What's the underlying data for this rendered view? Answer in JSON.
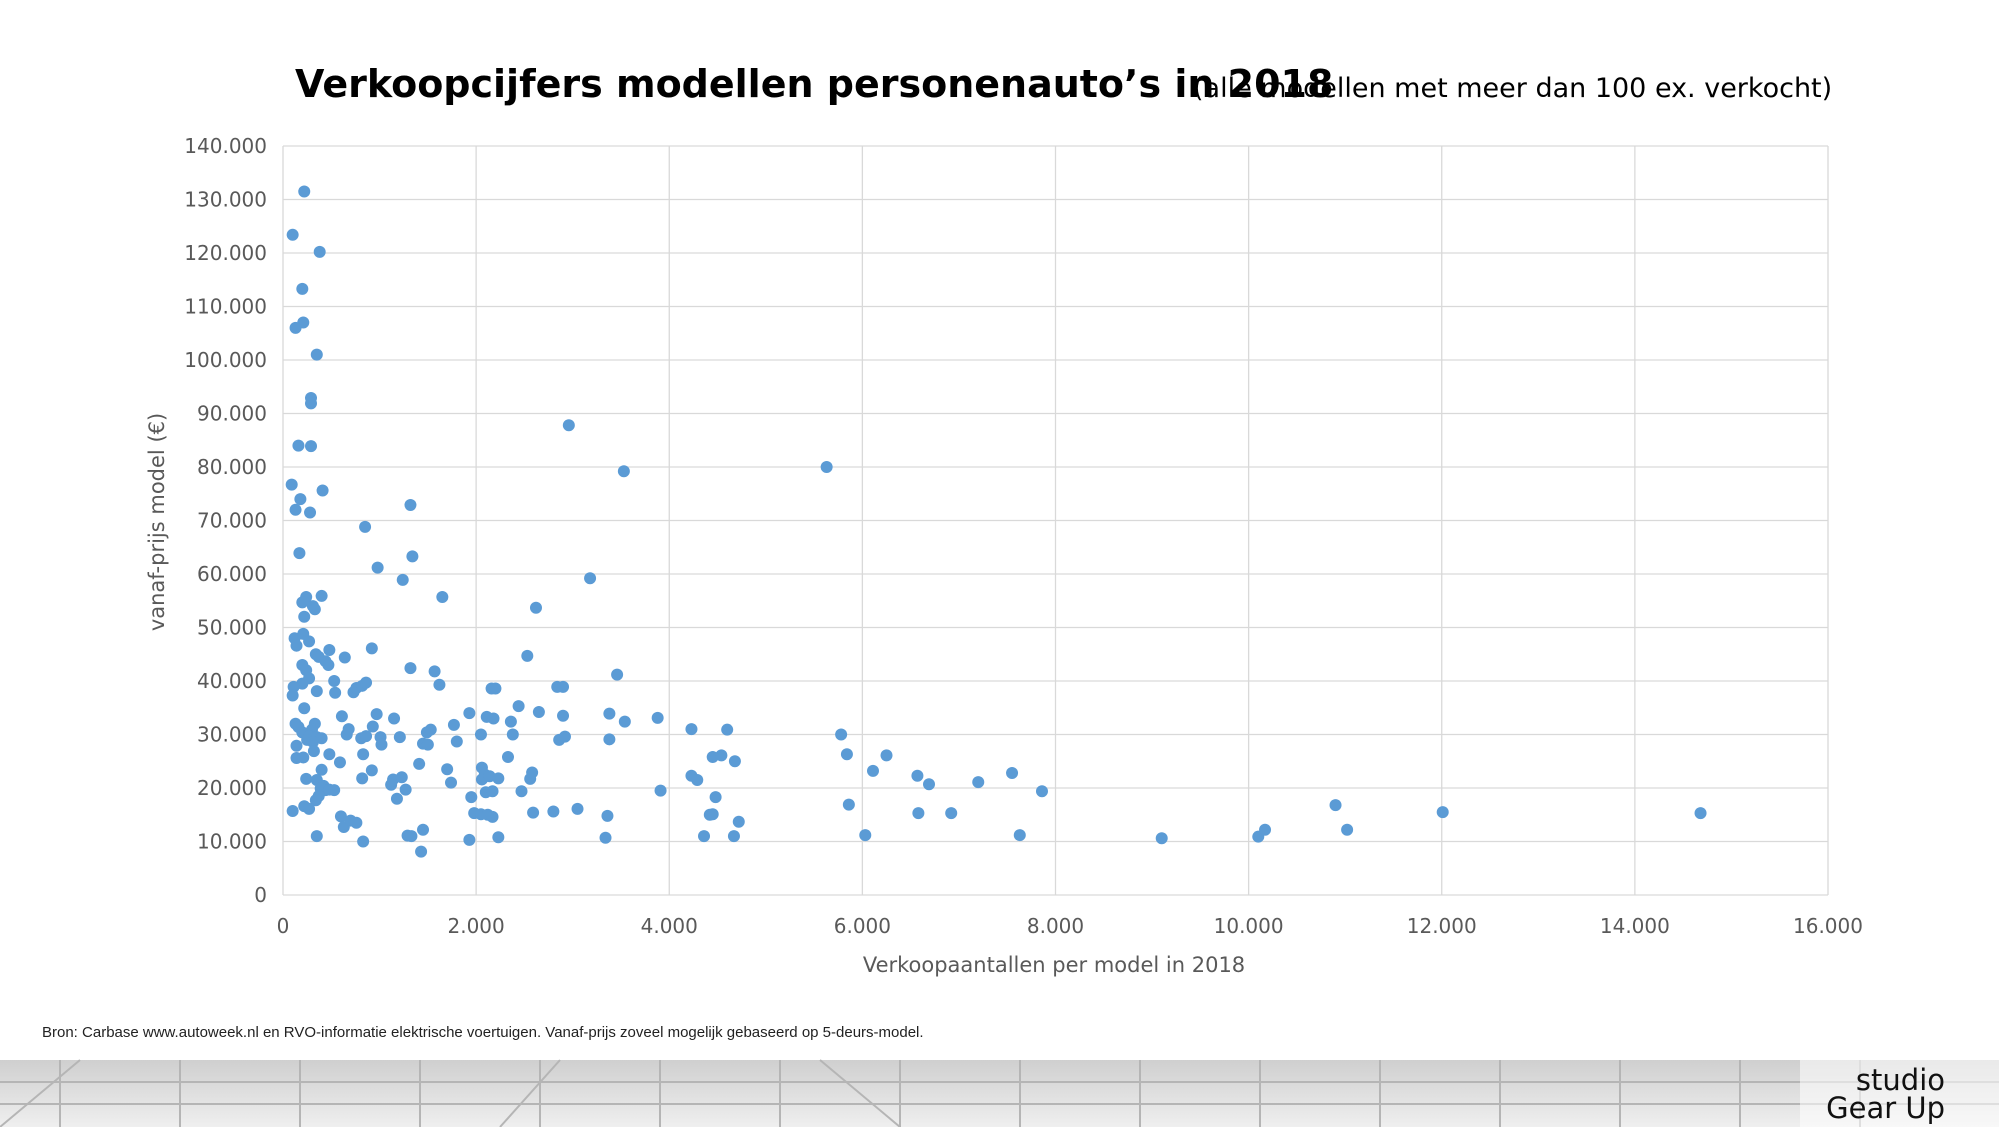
{
  "title": "Verkoopcijfers modellen personenauto’s in 2018",
  "subtitle": "(alle modellen met meer dan 100 ex. verkocht)",
  "source": "Bron:  Carbase www.autoweek.nl en RVO-informatie elektrische voertuigen. Vanaf-prijs zoveel mogelijk gebaseerd op 5-deurs-model.",
  "logo": {
    "line1": "studio",
    "line2": "Gear Up"
  },
  "colors": {
    "point": "#5b9bd5",
    "grid": "#d9d9d9",
    "text": "#595959"
  },
  "chart_data": {
    "type": "scatter",
    "title": "Verkoopcijfers modellen personenauto’s in 2018",
    "subtitle": "(alle modellen met meer dan 100 ex. verkocht)",
    "xlabel": "Verkoopaantallen per model in 2018",
    "ylabel": "vanaf-prijs model (€)",
    "xlim": [
      0,
      16000
    ],
    "ylim": [
      0,
      140000
    ],
    "grid": true,
    "legend": "none",
    "x_ticks": [
      "0",
      "2.000",
      "4.000",
      "6.000",
      "8.000",
      "10.000",
      "12.000",
      "14.000",
      "16.000"
    ],
    "y_ticks": [
      "0",
      "10.000",
      "20.000",
      "30.000",
      "40.000",
      "50.000",
      "60.000",
      "70.000",
      "80.000",
      "90.000",
      "100.000",
      "110.000",
      "120.000",
      "130.000",
      "140.000"
    ],
    "points": [
      [
        220,
        131500
      ],
      [
        100,
        123400
      ],
      [
        380,
        120200
      ],
      [
        200,
        113300
      ],
      [
        210,
        107000
      ],
      [
        130,
        106000
      ],
      [
        350,
        101000
      ],
      [
        290,
        92900
      ],
      [
        290,
        91900
      ],
      [
        160,
        84000
      ],
      [
        290,
        83900
      ],
      [
        90,
        76700
      ],
      [
        410,
        75600
      ],
      [
        180,
        74000
      ],
      [
        130,
        72000
      ],
      [
        280,
        71500
      ],
      [
        170,
        63900
      ],
      [
        240,
        55700
      ],
      [
        400,
        55900
      ],
      [
        200,
        54700
      ],
      [
        310,
        54000
      ],
      [
        330,
        53400
      ],
      [
        220,
        52000
      ],
      [
        120,
        48000
      ],
      [
        210,
        48800
      ],
      [
        270,
        47400
      ],
      [
        140,
        46600
      ],
      [
        340,
        45000
      ],
      [
        480,
        45800
      ],
      [
        370,
        44500
      ],
      [
        440,
        43700
      ],
      [
        470,
        43000
      ],
      [
        200,
        43000
      ],
      [
        240,
        42000
      ],
      [
        270,
        40500
      ],
      [
        200,
        39500
      ],
      [
        110,
        38900
      ],
      [
        530,
        40000
      ],
      [
        350,
        38100
      ],
      [
        100,
        37300
      ],
      [
        540,
        37800
      ],
      [
        220,
        34900
      ],
      [
        130,
        32000
      ],
      [
        160,
        31400
      ],
      [
        330,
        32000
      ],
      [
        300,
        30900
      ],
      [
        200,
        30400
      ],
      [
        270,
        29700
      ],
      [
        350,
        29500
      ],
      [
        400,
        29300
      ],
      [
        250,
        29000
      ],
      [
        310,
        28600
      ],
      [
        140,
        27900
      ],
      [
        320,
        26900
      ],
      [
        480,
        26300
      ],
      [
        140,
        25600
      ],
      [
        210,
        25700
      ],
      [
        400,
        23400
      ],
      [
        240,
        21700
      ],
      [
        350,
        21500
      ],
      [
        420,
        20400
      ],
      [
        390,
        19900
      ],
      [
        440,
        19600
      ],
      [
        480,
        19700
      ],
      [
        530,
        19600
      ],
      [
        370,
        18500
      ],
      [
        340,
        17700
      ],
      [
        220,
        16600
      ],
      [
        270,
        16100
      ],
      [
        100,
        15700
      ],
      [
        350,
        11000
      ],
      [
        590,
        24800
      ],
      [
        610,
        33400
      ],
      [
        660,
        30000
      ],
      [
        680,
        31000
      ],
      [
        640,
        44400
      ],
      [
        730,
        37900
      ],
      [
        760,
        38700
      ],
      [
        820,
        39100
      ],
      [
        860,
        39700
      ],
      [
        920,
        46100
      ],
      [
        970,
        33800
      ],
      [
        930,
        31500
      ],
      [
        1010,
        29500
      ],
      [
        810,
        29300
      ],
      [
        860,
        29700
      ],
      [
        830,
        26300
      ],
      [
        1020,
        28100
      ],
      [
        920,
        23300
      ],
      [
        820,
        21800
      ],
      [
        600,
        14700
      ],
      [
        630,
        12700
      ],
      [
        700,
        13900
      ],
      [
        760,
        13500
      ],
      [
        830,
        10000
      ],
      [
        850,
        68800
      ],
      [
        980,
        61200
      ],
      [
        1240,
        58900
      ],
      [
        1320,
        72900
      ],
      [
        1340,
        63300
      ],
      [
        1650,
        55700
      ],
      [
        1570,
        41800
      ],
      [
        1620,
        39300
      ],
      [
        1320,
        42400
      ],
      [
        1150,
        33000
      ],
      [
        1210,
        29500
      ],
      [
        1450,
        28300
      ],
      [
        1490,
        30400
      ],
      [
        1530,
        30900
      ],
      [
        1500,
        28100
      ],
      [
        1410,
        24500
      ],
      [
        1140,
        21600
      ],
      [
        1120,
        20600
      ],
      [
        1230,
        22000
      ],
      [
        1270,
        19700
      ],
      [
        1180,
        18000
      ],
      [
        1700,
        23500
      ],
      [
        1740,
        21000
      ],
      [
        1770,
        31800
      ],
      [
        1800,
        28700
      ],
      [
        1290,
        11100
      ],
      [
        1330,
        11000
      ],
      [
        1450,
        12200
      ],
      [
        1430,
        8100
      ],
      [
        1930,
        34000
      ],
      [
        1950,
        18300
      ],
      [
        1980,
        15300
      ],
      [
        1930,
        10300
      ],
      [
        2050,
        30000
      ],
      [
        2110,
        33300
      ],
      [
        2180,
        33000
      ],
      [
        2160,
        38600
      ],
      [
        2200,
        38600
      ],
      [
        2060,
        23800
      ],
      [
        2090,
        22500
      ],
      [
        2060,
        21600
      ],
      [
        2140,
        22200
      ],
      [
        2230,
        21800
      ],
      [
        2100,
        19200
      ],
      [
        2170,
        19400
      ],
      [
        2050,
        15100
      ],
      [
        2120,
        15000
      ],
      [
        2170,
        14600
      ],
      [
        2230,
        10800
      ],
      [
        2330,
        25800
      ],
      [
        2360,
        32400
      ],
      [
        2380,
        30000
      ],
      [
        2440,
        35300
      ],
      [
        2530,
        44700
      ],
      [
        2620,
        53700
      ],
      [
        2650,
        34200
      ],
      [
        2470,
        19400
      ],
      [
        2560,
        21700
      ],
      [
        2580,
        22900
      ],
      [
        2590,
        15400
      ],
      [
        2800,
        15600
      ],
      [
        2840,
        38900
      ],
      [
        2900,
        38900
      ],
      [
        2960,
        87800
      ],
      [
        2860,
        29000
      ],
      [
        2920,
        29600
      ],
      [
        2900,
        33500
      ],
      [
        3050,
        16100
      ],
      [
        3180,
        59200
      ],
      [
        3380,
        33900
      ],
      [
        3380,
        29100
      ],
      [
        3460,
        41200
      ],
      [
        3540,
        32400
      ],
      [
        3360,
        14800
      ],
      [
        3340,
        10700
      ],
      [
        3530,
        79200
      ],
      [
        3880,
        33100
      ],
      [
        3910,
        19500
      ],
      [
        4230,
        31000
      ],
      [
        4230,
        22300
      ],
      [
        4290,
        21500
      ],
      [
        4450,
        25800
      ],
      [
        4480,
        18300
      ],
      [
        4420,
        15000
      ],
      [
        4450,
        15100
      ],
      [
        4360,
        11000
      ],
      [
        4540,
        26100
      ],
      [
        4600,
        30900
      ],
      [
        4680,
        25000
      ],
      [
        4720,
        13700
      ],
      [
        4670,
        11000
      ],
      [
        5630,
        80000
      ],
      [
        5780,
        30000
      ],
      [
        5840,
        26300
      ],
      [
        5860,
        16900
      ],
      [
        6030,
        11200
      ],
      [
        6110,
        23200
      ],
      [
        6250,
        26100
      ],
      [
        6570,
        22300
      ],
      [
        6580,
        15300
      ],
      [
        6690,
        20700
      ],
      [
        6920,
        15300
      ],
      [
        7200,
        21100
      ],
      [
        7550,
        22800
      ],
      [
        7630,
        11200
      ],
      [
        7860,
        19400
      ],
      [
        9100,
        10600
      ],
      [
        10100,
        10900
      ],
      [
        10170,
        12200
      ],
      [
        10900,
        16800
      ],
      [
        11020,
        12200
      ],
      [
        12010,
        15500
      ],
      [
        14680,
        15300
      ]
    ]
  }
}
